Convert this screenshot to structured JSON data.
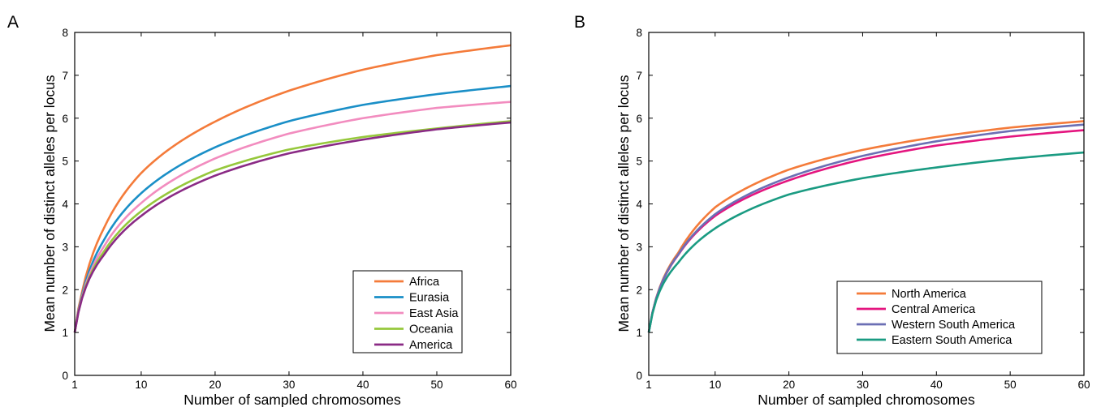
{
  "chart_data": [
    {
      "panel": "A",
      "type": "line",
      "xlabel": "Number of sampled chromosomes",
      "ylabel": "Mean number of distinct alleles per locus",
      "xlim": [
        1,
        60
      ],
      "ylim": [
        0,
        8
      ],
      "xticks": [
        1,
        10,
        20,
        30,
        40,
        50,
        60
      ],
      "yticks": [
        0,
        1,
        2,
        3,
        4,
        5,
        6,
        7,
        8
      ],
      "grid": false,
      "legend_position": "bottom-right",
      "x": [
        1,
        2,
        3,
        5,
        10,
        20,
        30,
        40,
        50,
        60
      ],
      "series": [
        {
          "name": "Africa",
          "color": "#f47b3a",
          "values": [
            1,
            1.95,
            2.6,
            3.45,
            4.72,
            5.92,
            6.64,
            7.13,
            7.47,
            7.7
          ]
        },
        {
          "name": "Eurasia",
          "color": "#1a8fc7",
          "values": [
            1,
            1.88,
            2.45,
            3.17,
            4.25,
            5.32,
            5.93,
            6.31,
            6.56,
            6.75
          ]
        },
        {
          "name": "East Asia",
          "color": "#f28cbf",
          "values": [
            1,
            1.84,
            2.36,
            3.02,
            4.02,
            5.06,
            5.64,
            6.0,
            6.24,
            6.38
          ]
        },
        {
          "name": "Oceania",
          "color": "#96c83c",
          "values": [
            1,
            1.82,
            2.3,
            2.9,
            3.83,
            4.78,
            5.27,
            5.56,
            5.76,
            5.93
          ]
        },
        {
          "name": "America",
          "color": "#8a2a85",
          "values": [
            1,
            1.8,
            2.26,
            2.82,
            3.72,
            4.66,
            5.18,
            5.5,
            5.74,
            5.9
          ]
        }
      ]
    },
    {
      "panel": "B",
      "type": "line",
      "xlabel": "Number of sampled chromosomes",
      "ylabel": "Mean number of distinct alleles per locus",
      "xlim": [
        1,
        60
      ],
      "ylim": [
        0,
        8
      ],
      "xticks": [
        1,
        10,
        20,
        30,
        40,
        50,
        60
      ],
      "yticks": [
        0,
        1,
        2,
        3,
        4,
        5,
        6,
        7,
        8
      ],
      "grid": false,
      "legend_position": "bottom-right",
      "x": [
        1,
        2,
        3,
        5,
        10,
        20,
        30,
        40,
        50,
        60
      ],
      "series": [
        {
          "name": "North America",
          "color": "#f47b3a",
          "values": [
            1,
            1.8,
            2.27,
            2.86,
            3.92,
            4.8,
            5.26,
            5.56,
            5.78,
            5.93
          ]
        },
        {
          "name": "Central America",
          "color": "#e4157f",
          "values": [
            1,
            1.79,
            2.24,
            2.81,
            3.72,
            4.55,
            5.04,
            5.36,
            5.57,
            5.72
          ]
        },
        {
          "name": "Western South America",
          "color": "#6b6fb4",
          "values": [
            1,
            1.79,
            2.25,
            2.82,
            3.76,
            4.62,
            5.12,
            5.46,
            5.7,
            5.85
          ]
        },
        {
          "name": "Eastern South America",
          "color": "#1a9b82",
          "values": [
            1,
            1.75,
            2.15,
            2.63,
            3.43,
            4.22,
            4.6,
            4.85,
            5.05,
            5.2
          ]
        }
      ]
    }
  ]
}
